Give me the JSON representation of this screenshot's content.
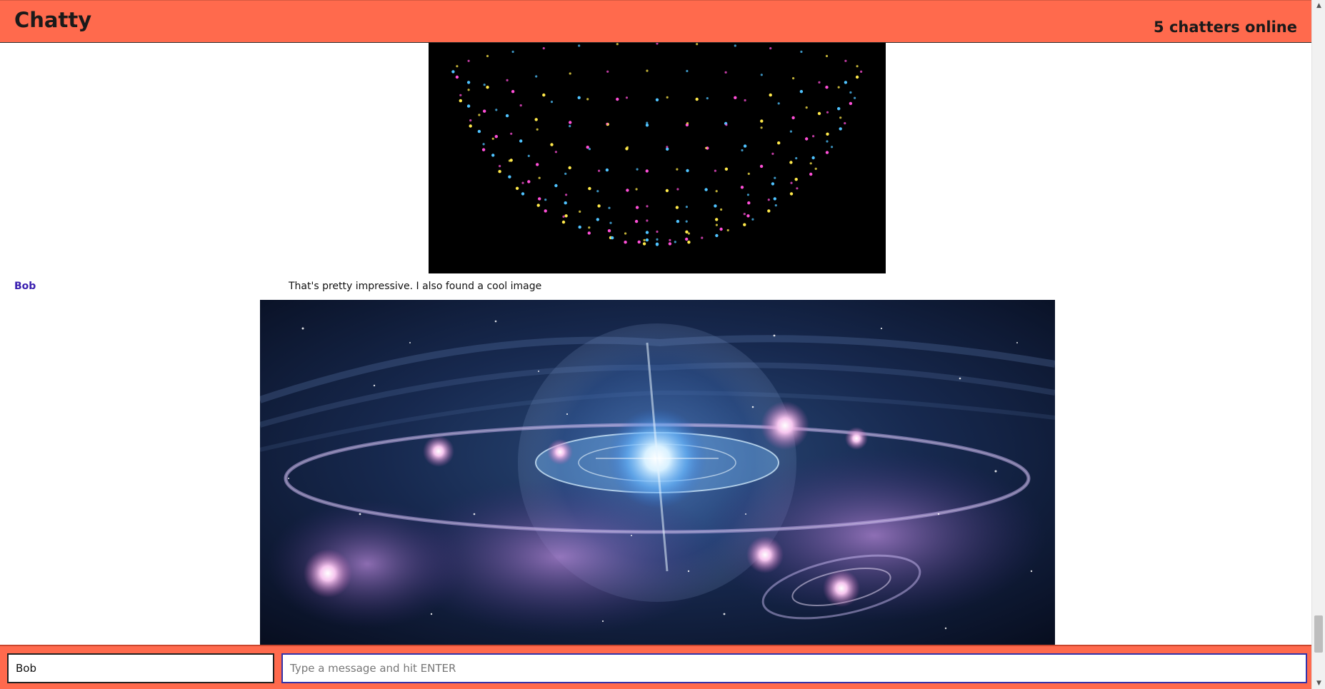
{
  "header": {
    "title": "Chatty",
    "online_status": "5 chatters online"
  },
  "messages": [
    {
      "user": "Bob",
      "text": "That's pretty impressive. I also found a cool image"
    }
  ],
  "images": {
    "globe": "dotted-globe-image",
    "galaxy": "galaxy-image"
  },
  "footer": {
    "username_value": "Bob",
    "message_placeholder": "Type a message and hit ENTER"
  },
  "scrollbar": {
    "position_fraction": 0.96,
    "visible_fraction": 0.22
  },
  "colors": {
    "accent": "#ff6a4d",
    "username": "#3a1fb0",
    "message_input_border": "#3333aa"
  }
}
